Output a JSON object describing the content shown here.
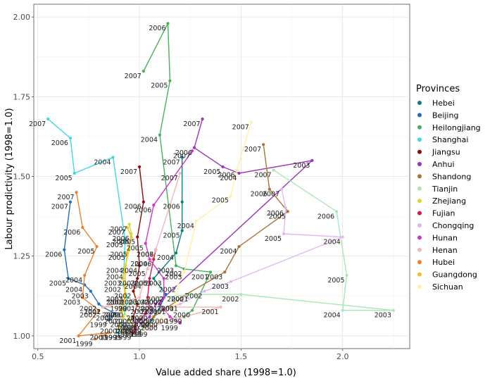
{
  "chart_data": {
    "type": "scatter",
    "xlabel": "Value added share (1998=1.0)",
    "ylabel": "Labour prodictivity (1998=1.0)",
    "xlim": [
      0.48,
      2.33
    ],
    "ylim": [
      0.96,
      2.04
    ],
    "xticks": [
      "0.5",
      "1.0",
      "1.5",
      "2.0"
    ],
    "yticks": [
      "1.00",
      "1.25",
      "1.50",
      "1.75",
      "2.00"
    ],
    "legend_title": "Provinces",
    "legend_position": "right",
    "grid": true,
    "series": [
      {
        "name": "Hebei",
        "color": "#0a7c85",
        "points": [
          {
            "year": "1999",
            "x": 1.02,
            "y": 1.02
          },
          {
            "year": "2000",
            "x": 1.06,
            "y": 1.05
          },
          {
            "year": "2001",
            "x": 1.1,
            "y": 1.09
          },
          {
            "year": "2002",
            "x": 1.13,
            "y": 1.13
          },
          {
            "year": "2003",
            "x": 1.07,
            "y": 1.18
          },
          {
            "year": "2004",
            "x": 1.18,
            "y": 1.26
          },
          {
            "year": "2005",
            "x": 1.21,
            "y": 1.33
          },
          {
            "year": "2006",
            "x": 1.21,
            "y": 1.42
          },
          {
            "year": "2007",
            "x": 1.21,
            "y": 1.56
          }
        ]
      },
      {
        "name": "Beijing",
        "color": "#1f6fb8",
        "points": [
          {
            "year": "1999",
            "x": 0.85,
            "y": 1.05
          },
          {
            "year": "2000",
            "x": 0.88,
            "y": 1.07
          },
          {
            "year": "2001",
            "x": 0.82,
            "y": 1.09
          },
          {
            "year": "2002",
            "x": 0.8,
            "y": 1.1
          },
          {
            "year": "2003",
            "x": 0.76,
            "y": 1.14
          },
          {
            "year": "2004",
            "x": 0.73,
            "y": 1.16
          },
          {
            "year": "2005",
            "x": 0.65,
            "y": 1.18
          },
          {
            "year": "2006",
            "x": 0.63,
            "y": 1.27
          },
          {
            "year": "2007",
            "x": 0.66,
            "y": 1.42
          }
        ]
      },
      {
        "name": "Heilongjiang",
        "color": "#47b25a",
        "points": [
          {
            "year": "1999",
            "x": 1.22,
            "y": 1.06
          },
          {
            "year": "2000",
            "x": 1.26,
            "y": 1.08
          },
          {
            "year": "2001",
            "x": 1.35,
            "y": 1.2
          },
          {
            "year": "2002",
            "x": 1.22,
            "y": 1.21
          },
          {
            "year": "2003",
            "x": 1.18,
            "y": 1.22
          },
          {
            "year": "2004",
            "x": 1.1,
            "y": 1.63
          },
          {
            "year": "2005",
            "x": 1.15,
            "y": 1.8
          },
          {
            "year": "2006",
            "x": 1.14,
            "y": 1.98
          },
          {
            "year": "2007",
            "x": 1.02,
            "y": 1.83
          }
        ]
      },
      {
        "name": "Shanghai",
        "color": "#3fd8e0",
        "points": [
          {
            "year": "1999",
            "x": 0.9,
            "y": 1.01
          },
          {
            "year": "2000",
            "x": 0.93,
            "y": 1.08
          },
          {
            "year": "2001",
            "x": 0.94,
            "y": 1.12
          },
          {
            "year": "2002",
            "x": 0.92,
            "y": 1.16
          },
          {
            "year": "2003",
            "x": 0.93,
            "y": 1.3
          },
          {
            "year": "2004",
            "x": 0.87,
            "y": 1.56
          },
          {
            "year": "2005",
            "x": 0.68,
            "y": 1.51
          },
          {
            "year": "2006",
            "x": 0.66,
            "y": 1.62
          },
          {
            "year": "2007",
            "x": 0.55,
            "y": 1.68
          }
        ]
      },
      {
        "name": "Jiangsu",
        "color": "#8b0a0a",
        "points": [
          {
            "year": "1999",
            "x": 0.98,
            "y": 1.02
          },
          {
            "year": "2000",
            "x": 0.97,
            "y": 1.06
          },
          {
            "year": "2001",
            "x": 0.99,
            "y": 1.1
          },
          {
            "year": "2002",
            "x": 0.97,
            "y": 1.14
          },
          {
            "year": "2003",
            "x": 0.99,
            "y": 1.18
          },
          {
            "year": "2004",
            "x": 1.0,
            "y": 1.22
          },
          {
            "year": "2005",
            "x": 0.99,
            "y": 1.31
          },
          {
            "year": "2006",
            "x": 1.02,
            "y": 1.42
          },
          {
            "year": "2007",
            "x": 1.0,
            "y": 1.53
          }
        ]
      },
      {
        "name": "Anhui",
        "color": "#9b35b8",
        "points": [
          {
            "year": "1999",
            "x": 1.01,
            "y": 1.04
          },
          {
            "year": "2000",
            "x": 1.05,
            "y": 1.06
          },
          {
            "year": "2001",
            "x": 1.08,
            "y": 1.1
          },
          {
            "year": "2002",
            "x": 1.12,
            "y": 1.12
          },
          {
            "year": "2003",
            "x": 1.85,
            "y": 1.55
          },
          {
            "year": "2004",
            "x": 1.49,
            "y": 1.51
          },
          {
            "year": "2005",
            "x": 1.41,
            "y": 1.53
          },
          {
            "year": "2006",
            "x": 1.27,
            "y": 1.59
          },
          {
            "year": "2007",
            "x": 1.31,
            "y": 1.68
          }
        ]
      },
      {
        "name": "Shandong",
        "color": "#a87436",
        "points": [
          {
            "year": "1999",
            "x": 1.02,
            "y": 1.03
          },
          {
            "year": "2000",
            "x": 1.07,
            "y": 1.06
          },
          {
            "year": "2001",
            "x": 1.14,
            "y": 1.09
          },
          {
            "year": "2002",
            "x": 1.23,
            "y": 1.13
          },
          {
            "year": "2003",
            "x": 1.42,
            "y": 1.2
          },
          {
            "year": "2004",
            "x": 1.49,
            "y": 1.28
          },
          {
            "year": "2005",
            "x": 1.73,
            "y": 1.39
          },
          {
            "year": "2006",
            "x": 1.64,
            "y": 1.46
          },
          {
            "year": "2007",
            "x": 1.61,
            "y": 1.6
          }
        ]
      },
      {
        "name": "Tianjin",
        "color": "#a8e8b8",
        "points": [
          {
            "year": "1999",
            "x": 0.95,
            "y": 1.1
          },
          {
            "year": "2000",
            "x": 1.1,
            "y": 1.12
          },
          {
            "year": "2001",
            "x": 1.25,
            "y": 1.13
          },
          {
            "year": "2002",
            "x": 1.5,
            "y": 1.13
          },
          {
            "year": "2003",
            "x": 2.25,
            "y": 1.08
          },
          {
            "year": "2004",
            "x": 2.0,
            "y": 1.08
          },
          {
            "year": "2005",
            "x": 2.02,
            "y": 1.19
          },
          {
            "year": "2006",
            "x": 1.97,
            "y": 1.39
          },
          {
            "year": "2007",
            "x": 1.66,
            "y": 1.52
          }
        ]
      },
      {
        "name": "Zhejiang",
        "color": "#d8d830",
        "points": [
          {
            "year": "1999",
            "x": 0.97,
            "y": 1.03
          },
          {
            "year": "2000",
            "x": 0.95,
            "y": 1.05
          },
          {
            "year": "2001",
            "x": 0.92,
            "y": 1.08
          },
          {
            "year": "2002",
            "x": 0.93,
            "y": 1.12
          },
          {
            "year": "2003",
            "x": 0.92,
            "y": 1.18
          },
          {
            "year": "2004",
            "x": 0.93,
            "y": 1.22
          },
          {
            "year": "2005",
            "x": 0.95,
            "y": 1.27
          },
          {
            "year": "2006",
            "x": 0.96,
            "y": 1.32
          },
          {
            "year": "2007",
            "x": 0.95,
            "y": 1.35
          }
        ]
      },
      {
        "name": "Fujian",
        "color": "#d81a4a",
        "points": [
          {
            "year": "1999",
            "x": 0.97,
            "y": 1.01
          },
          {
            "year": "2000",
            "x": 0.98,
            "y": 1.03
          },
          {
            "year": "2001",
            "x": 1.0,
            "y": 1.05
          },
          {
            "year": "2002",
            "x": 1.03,
            "y": 1.07
          },
          {
            "year": "2003",
            "x": 1.05,
            "y": 1.09
          },
          {
            "year": "2004",
            "x": 1.04,
            "y": 1.12
          },
          {
            "year": "2005",
            "x": 1.05,
            "y": 1.18
          },
          {
            "year": "2006",
            "x": 1.07,
            "y": 1.24
          },
          {
            "year": "2007",
            "x": 1.08,
            "y": 1.27
          }
        ]
      },
      {
        "name": "Chongqing",
        "color": "#e0b8f0",
        "points": [
          {
            "year": "1999",
            "x": 0.98,
            "y": 1.04
          },
          {
            "year": "2000",
            "x": 1.05,
            "y": 1.07
          },
          {
            "year": "2001",
            "x": 1.2,
            "y": 1.1
          },
          {
            "year": "2002",
            "x": 1.32,
            "y": 1.14
          },
          {
            "year": "2003",
            "x": 1.45,
            "y": 1.17
          },
          {
            "year": "2004",
            "x": 2.0,
            "y": 1.31
          },
          {
            "year": "2005",
            "x": 1.71,
            "y": 1.32
          },
          {
            "year": "2006",
            "x": 1.72,
            "y": 1.4
          },
          {
            "year": "2007",
            "x": 1.7,
            "y": 1.46
          }
        ]
      },
      {
        "name": "Hunan",
        "color": "#cc38cc",
        "points": [
          {
            "year": "1999",
            "x": 1.2,
            "y": 1.04
          },
          {
            "year": "2000",
            "x": 1.15,
            "y": 1.06
          },
          {
            "year": "2001",
            "x": 1.1,
            "y": 1.1
          },
          {
            "year": "2002",
            "x": 1.12,
            "y": 1.12
          },
          {
            "year": "2003",
            "x": 1.12,
            "y": 1.18
          },
          {
            "year": "2004",
            "x": 1.05,
            "y": 1.24
          },
          {
            "year": "2005",
            "x": 1.03,
            "y": 1.29
          },
          {
            "year": "2006",
            "x": 1.07,
            "y": 1.41
          },
          {
            "year": "2007",
            "x": 1.26,
            "y": 1.58
          }
        ]
      },
      {
        "name": "Henan",
        "color": "#f0b8b8",
        "points": [
          {
            "year": "1999",
            "x": 1.05,
            "y": 1.02
          },
          {
            "year": "2000",
            "x": 1.1,
            "y": 1.04
          },
          {
            "year": "2001",
            "x": 1.4,
            "y": 1.09
          },
          {
            "year": "2002",
            "x": 0.82,
            "y": 1.09
          },
          {
            "year": "2003",
            "x": 1.0,
            "y": 1.12
          },
          {
            "year": "2004",
            "x": 1.02,
            "y": 1.17
          },
          {
            "year": "2005",
            "x": 1.04,
            "y": 1.21
          },
          {
            "year": "2006",
            "x": 1.08,
            "y": 1.27
          },
          {
            "year": "2007",
            "x": 1.2,
            "y": 1.51
          }
        ]
      },
      {
        "name": "Hubei",
        "color": "#e8822e",
        "points": [
          {
            "year": "1999",
            "x": 0.78,
            "y": 0.99
          },
          {
            "year": "2000",
            "x": 0.85,
            "y": 1.01
          },
          {
            "year": "2001",
            "x": 0.7,
            "y": 1.0
          },
          {
            "year": "2002",
            "x": 0.8,
            "y": 1.08
          },
          {
            "year": "2003",
            "x": 0.72,
            "y": 1.12
          },
          {
            "year": "2004",
            "x": 0.73,
            "y": 1.19
          },
          {
            "year": "2005",
            "x": 0.79,
            "y": 1.28
          },
          {
            "year": "2006",
            "x": 0.72,
            "y": 1.34
          },
          {
            "year": "2007",
            "x": 0.69,
            "y": 1.45
          }
        ]
      },
      {
        "name": "Guangdong",
        "color": "#f0c020",
        "points": [
          {
            "year": "1999",
            "x": 0.92,
            "y": 1.01
          },
          {
            "year": "2000",
            "x": 0.9,
            "y": 1.03
          },
          {
            "year": "2001",
            "x": 0.92,
            "y": 1.06
          },
          {
            "year": "2002",
            "x": 0.91,
            "y": 1.08
          },
          {
            "year": "2003",
            "x": 0.93,
            "y": 1.13
          },
          {
            "year": "2004",
            "x": 0.93,
            "y": 1.2
          },
          {
            "year": "2005",
            "x": 0.94,
            "y": 1.26
          },
          {
            "year": "2006",
            "x": 0.96,
            "y": 1.31
          },
          {
            "year": "2007",
            "x": 0.94,
            "y": 1.34
          }
        ]
      },
      {
        "name": "Sichuan",
        "color": "#fff0a8",
        "points": [
          {
            "year": "1999",
            "x": 1.02,
            "y": 1.02
          },
          {
            "year": "2000",
            "x": 1.1,
            "y": 1.05
          },
          {
            "year": "2001",
            "x": 1.18,
            "y": 1.1
          },
          {
            "year": "2002",
            "x": 1.19,
            "y": 1.16
          },
          {
            "year": "2003",
            "x": 1.22,
            "y": 1.2
          },
          {
            "year": "2004",
            "x": 1.28,
            "y": 1.36
          },
          {
            "year": "2005",
            "x": 1.45,
            "y": 1.44
          },
          {
            "year": "2006",
            "x": 1.48,
            "y": 1.52
          },
          {
            "year": "2007",
            "x": 1.55,
            "y": 1.67
          }
        ]
      }
    ]
  }
}
